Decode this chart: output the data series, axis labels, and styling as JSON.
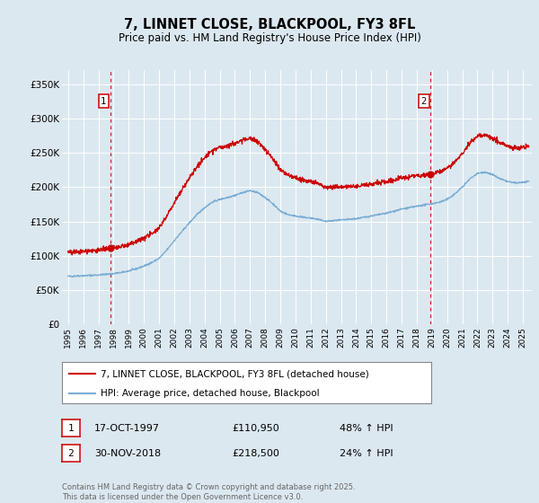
{
  "title": "7, LINNET CLOSE, BLACKPOOL, FY3 8FL",
  "subtitle": "Price paid vs. HM Land Registry's House Price Index (HPI)",
  "background_color": "#dce8f0",
  "plot_bg_color": "#dce8f0",
  "red_line_color": "#cc0000",
  "blue_line_color": "#7aadd4",
  "sale1": {
    "date_num": 1997.79,
    "price": 110950,
    "label": "1",
    "date_str": "17-OCT-1997",
    "pct": "48% ↑ HPI"
  },
  "sale2": {
    "date_num": 2018.92,
    "price": 218500,
    "label": "2",
    "date_str": "30-NOV-2018",
    "pct": "24% ↑ HPI"
  },
  "ylim": [
    0,
    370000
  ],
  "xlim_start": 1994.6,
  "xlim_end": 2025.6,
  "yticks": [
    0,
    50000,
    100000,
    150000,
    200000,
    250000,
    300000,
    350000
  ],
  "ytick_labels": [
    "£0",
    "£50K",
    "£100K",
    "£150K",
    "£200K",
    "£250K",
    "£300K",
    "£350K"
  ],
  "xticks": [
    1995,
    1996,
    1997,
    1998,
    1999,
    2000,
    2001,
    2002,
    2003,
    2004,
    2005,
    2006,
    2007,
    2008,
    2009,
    2010,
    2011,
    2012,
    2013,
    2014,
    2015,
    2016,
    2017,
    2018,
    2019,
    2020,
    2021,
    2022,
    2023,
    2024,
    2025
  ],
  "legend_line1": "7, LINNET CLOSE, BLACKPOOL, FY3 8FL (detached house)",
  "legend_line2": "HPI: Average price, detached house, Blackpool",
  "footer": "Contains HM Land Registry data © Crown copyright and database right 2025.\nThis data is licensed under the Open Government Licence v3.0."
}
